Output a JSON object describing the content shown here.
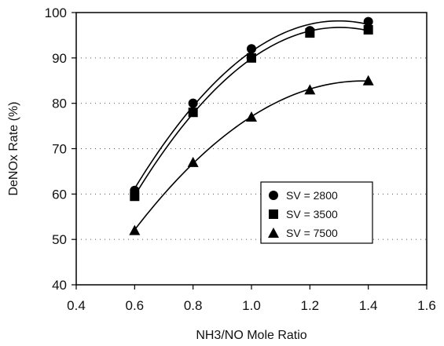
{
  "chart_data": {
    "type": "scatter",
    "title": "",
    "xlabel": "NH3/NO Mole Ratio",
    "ylabel": "DeNOx Rate (%)",
    "xlim": [
      0.4,
      1.6
    ],
    "ylim": [
      40,
      100
    ],
    "xticks": [
      "0.4",
      "0.6",
      "0.8",
      "1.0",
      "1.2",
      "1.4",
      "1.6"
    ],
    "yticks": [
      "40",
      "50",
      "60",
      "70",
      "80",
      "90",
      "100"
    ],
    "grid": "horizontal dotted",
    "legend_position": "bottom-right",
    "trendline": "smooth curve per series",
    "series": [
      {
        "name": "SV = 2800",
        "marker": "circle",
        "color": "#000000",
        "x": [
          0.6,
          0.8,
          1.0,
          1.2,
          1.4
        ],
        "y": [
          60.8,
          80.0,
          92.0,
          96.0,
          98.0
        ]
      },
      {
        "name": "SV = 3500",
        "marker": "square",
        "color": "#000000",
        "x": [
          0.6,
          0.8,
          1.0,
          1.2,
          1.4
        ],
        "y": [
          59.5,
          78.0,
          90.0,
          95.5,
          96.2
        ]
      },
      {
        "name": "SV = 7500",
        "marker": "triangle",
        "color": "#000000",
        "x": [
          0.6,
          0.8,
          1.0,
          1.2,
          1.4
        ],
        "y": [
          52.0,
          67.0,
          77.0,
          83.0,
          85.0
        ]
      }
    ]
  }
}
